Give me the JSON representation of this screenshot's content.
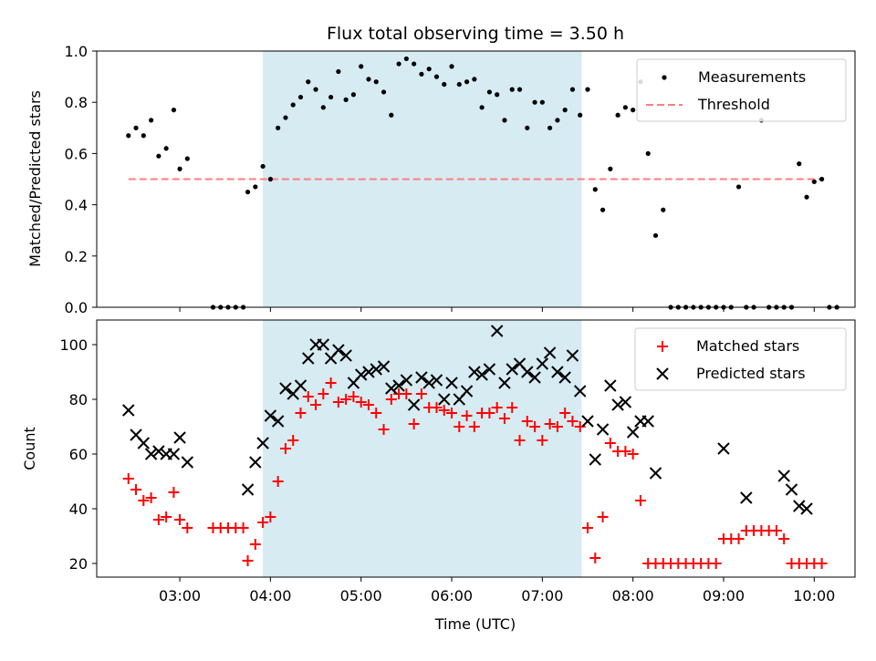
{
  "chart_data": [
    {
      "type": "scatter",
      "title": "Flux total observing time = 3.50 h",
      "xlabel": "",
      "ylabel": "Matched/Predicted stars",
      "ylim": [
        0,
        1.0
      ],
      "xlim": [
        "02:05",
        "10:27"
      ],
      "yticks": [
        "0.0",
        "0.2",
        "0.4",
        "0.6",
        "0.8",
        "1.0"
      ],
      "observing_window": {
        "start": "03:55",
        "end": "07:26"
      },
      "legend_position": "top-right",
      "grid": false,
      "series": [
        {
          "name": "Measurements",
          "marker": "dot",
          "color": "#000000",
          "points": [
            [
              "02:26",
              0.67
            ],
            [
              "02:31",
              0.7
            ],
            [
              "02:36",
              0.67
            ],
            [
              "02:41",
              0.73
            ],
            [
              "02:46",
              0.59
            ],
            [
              "02:51",
              0.62
            ],
            [
              "02:56",
              0.77
            ],
            [
              "03:00",
              0.54
            ],
            [
              "03:05",
              0.58
            ],
            [
              "03:22",
              0.0
            ],
            [
              "03:27",
              0.0
            ],
            [
              "03:32",
              0.0
            ],
            [
              "03:37",
              0.0
            ],
            [
              "03:42",
              0.0
            ],
            [
              "03:45",
              0.45
            ],
            [
              "03:50",
              0.47
            ],
            [
              "03:55",
              0.55
            ],
            [
              "04:00",
              0.5
            ],
            [
              "04:05",
              0.7
            ],
            [
              "04:10",
              0.74
            ],
            [
              "04:15",
              0.79
            ],
            [
              "04:20",
              0.82
            ],
            [
              "04:25",
              0.88
            ],
            [
              "04:30",
              0.85
            ],
            [
              "04:35",
              0.78
            ],
            [
              "04:40",
              0.82
            ],
            [
              "04:45",
              0.92
            ],
            [
              "04:50",
              0.81
            ],
            [
              "04:55",
              0.83
            ],
            [
              "05:00",
              0.94
            ],
            [
              "05:05",
              0.89
            ],
            [
              "05:10",
              0.88
            ],
            [
              "05:15",
              0.84
            ],
            [
              "05:20",
              0.75
            ],
            [
              "05:25",
              0.95
            ],
            [
              "05:30",
              0.97
            ],
            [
              "05:35",
              0.95
            ],
            [
              "05:40",
              0.91
            ],
            [
              "05:45",
              0.93
            ],
            [
              "05:50",
              0.9
            ],
            [
              "05:55",
              0.87
            ],
            [
              "06:00",
              0.94
            ],
            [
              "06:05",
              0.87
            ],
            [
              "06:10",
              0.88
            ],
            [
              "06:15",
              0.89
            ],
            [
              "06:20",
              0.78
            ],
            [
              "06:25",
              0.84
            ],
            [
              "06:30",
              0.83
            ],
            [
              "06:35",
              0.73
            ],
            [
              "06:40",
              0.85
            ],
            [
              "06:45",
              0.85
            ],
            [
              "06:50",
              0.7
            ],
            [
              "06:55",
              0.8
            ],
            [
              "07:00",
              0.8
            ],
            [
              "07:05",
              0.7
            ],
            [
              "07:10",
              0.73
            ],
            [
              "07:15",
              0.77
            ],
            [
              "07:20",
              0.85
            ],
            [
              "07:25",
              0.75
            ],
            [
              "07:30",
              0.85
            ],
            [
              "07:35",
              0.46
            ],
            [
              "07:40",
              0.38
            ],
            [
              "07:45",
              0.54
            ],
            [
              "07:50",
              0.75
            ],
            [
              "07:55",
              0.78
            ],
            [
              "08:00",
              0.77
            ],
            [
              "08:05",
              0.88
            ],
            [
              "08:10",
              0.6
            ],
            [
              "08:15",
              0.28
            ],
            [
              "08:20",
              0.38
            ],
            [
              "08:25",
              0.0
            ],
            [
              "08:30",
              0.0
            ],
            [
              "08:35",
              0.0
            ],
            [
              "08:40",
              0.0
            ],
            [
              "08:45",
              0.0
            ],
            [
              "08:50",
              0.0
            ],
            [
              "08:55",
              0.0
            ],
            [
              "09:00",
              0.0
            ],
            [
              "09:05",
              0.0
            ],
            [
              "09:10",
              0.47
            ],
            [
              "09:15",
              0.0
            ],
            [
              "09:20",
              0.0
            ],
            [
              "09:25",
              0.73
            ],
            [
              "09:30",
              0.0
            ],
            [
              "09:35",
              0.0
            ],
            [
              "09:40",
              0.0
            ],
            [
              "09:45",
              0.0
            ],
            [
              "09:50",
              0.56
            ],
            [
              "09:55",
              0.43
            ],
            [
              "10:00",
              0.49
            ],
            [
              "10:05",
              0.5
            ],
            [
              "10:10",
              0.0
            ],
            [
              "10:15",
              0.0
            ]
          ]
        },
        {
          "name": "Threshold",
          "style": "dashed-line",
          "color": "#ff7f7f",
          "points": [
            [
              "02:26",
              0.5
            ],
            [
              "10:05",
              0.5
            ]
          ]
        }
      ]
    },
    {
      "type": "scatter",
      "title": "",
      "xlabel": "Time (UTC)",
      "ylabel": "Count",
      "ylim": [
        15,
        109
      ],
      "xlim": [
        "02:05",
        "10:27"
      ],
      "yticks": [
        "20",
        "40",
        "60",
        "80",
        "100"
      ],
      "xticks": [
        "03:00",
        "04:00",
        "05:00",
        "06:00",
        "07:00",
        "08:00",
        "09:00",
        "10:00"
      ],
      "observing_window": {
        "start": "03:55",
        "end": "07:26"
      },
      "legend_position": "top-right",
      "grid": false,
      "series": [
        {
          "name": "Matched stars",
          "marker": "plus",
          "color": "#ff0000",
          "points": [
            [
              "02:26",
              51
            ],
            [
              "02:31",
              47
            ],
            [
              "02:36",
              43
            ],
            [
              "02:41",
              44
            ],
            [
              "02:46",
              36
            ],
            [
              "02:51",
              37
            ],
            [
              "02:56",
              46
            ],
            [
              "03:00",
              36
            ],
            [
              "03:05",
              33
            ],
            [
              "03:22",
              33
            ],
            [
              "03:27",
              33
            ],
            [
              "03:32",
              33
            ],
            [
              "03:37",
              33
            ],
            [
              "03:42",
              33
            ],
            [
              "03:45",
              21
            ],
            [
              "03:50",
              27
            ],
            [
              "03:55",
              35
            ],
            [
              "04:00",
              37
            ],
            [
              "04:05",
              50
            ],
            [
              "04:10",
              62
            ],
            [
              "04:15",
              65
            ],
            [
              "04:20",
              75
            ],
            [
              "04:25",
              81
            ],
            [
              "04:30",
              78
            ],
            [
              "04:35",
              82
            ],
            [
              "04:40",
              86
            ],
            [
              "04:45",
              79
            ],
            [
              "04:50",
              80
            ],
            [
              "04:55",
              81
            ],
            [
              "05:00",
              79
            ],
            [
              "05:05",
              78
            ],
            [
              "05:10",
              75
            ],
            [
              "05:15",
              69
            ],
            [
              "05:20",
              80
            ],
            [
              "05:25",
              82
            ],
            [
              "05:30",
              82
            ],
            [
              "05:35",
              71
            ],
            [
              "05:40",
              82
            ],
            [
              "05:45",
              77
            ],
            [
              "05:50",
              77
            ],
            [
              "05:55",
              76
            ],
            [
              "06:00",
              75
            ],
            [
              "06:05",
              70
            ],
            [
              "06:10",
              74
            ],
            [
              "06:15",
              70
            ],
            [
              "06:20",
              75
            ],
            [
              "06:25",
              75
            ],
            [
              "06:30",
              77
            ],
            [
              "06:35",
              73
            ],
            [
              "06:40",
              77
            ],
            [
              "06:45",
              65
            ],
            [
              "06:50",
              72
            ],
            [
              "06:55",
              70
            ],
            [
              "07:00",
              65
            ],
            [
              "07:05",
              71
            ],
            [
              "07:10",
              70
            ],
            [
              "07:15",
              75
            ],
            [
              "07:20",
              72
            ],
            [
              "07:25",
              70
            ],
            [
              "07:30",
              33
            ],
            [
              "07:35",
              22
            ],
            [
              "07:40",
              37
            ],
            [
              "07:45",
              64
            ],
            [
              "07:50",
              61
            ],
            [
              "07:55",
              61
            ],
            [
              "08:00",
              60
            ],
            [
              "08:05",
              43
            ],
            [
              "08:10",
              20
            ],
            [
              "08:15",
              20
            ],
            [
              "08:20",
              20
            ],
            [
              "08:25",
              20
            ],
            [
              "08:30",
              20
            ],
            [
              "08:35",
              20
            ],
            [
              "08:40",
              20
            ],
            [
              "08:45",
              20
            ],
            [
              "08:50",
              20
            ],
            [
              "08:55",
              20
            ],
            [
              "09:00",
              29
            ],
            [
              "09:05",
              29
            ],
            [
              "09:10",
              29
            ],
            [
              "09:15",
              32
            ],
            [
              "09:20",
              32
            ],
            [
              "09:25",
              32
            ],
            [
              "09:30",
              32
            ],
            [
              "09:35",
              32
            ],
            [
              "09:40",
              29
            ],
            [
              "09:45",
              20
            ],
            [
              "09:50",
              20
            ],
            [
              "09:55",
              20
            ],
            [
              "10:00",
              20
            ],
            [
              "10:05",
              20
            ]
          ]
        },
        {
          "name": "Predicted stars",
          "marker": "x",
          "color": "#000000",
          "points": [
            [
              "02:26",
              76
            ],
            [
              "02:31",
              67
            ],
            [
              "02:36",
              64
            ],
            [
              "02:41",
              60
            ],
            [
              "02:46",
              61
            ],
            [
              "02:51",
              60
            ],
            [
              "02:56",
              60
            ],
            [
              "03:00",
              66
            ],
            [
              "03:05",
              57
            ],
            [
              "03:45",
              47
            ],
            [
              "03:50",
              57
            ],
            [
              "03:55",
              64
            ],
            [
              "04:00",
              74
            ],
            [
              "04:05",
              72
            ],
            [
              "04:10",
              84
            ],
            [
              "04:15",
              82
            ],
            [
              "04:20",
              85
            ],
            [
              "04:25",
              95
            ],
            [
              "04:30",
              100
            ],
            [
              "04:35",
              100
            ],
            [
              "04:40",
              95
            ],
            [
              "04:45",
              98
            ],
            [
              "04:50",
              96
            ],
            [
              "04:55",
              86
            ],
            [
              "05:00",
              89
            ],
            [
              "05:05",
              90
            ],
            [
              "05:10",
              91
            ],
            [
              "05:15",
              92
            ],
            [
              "05:20",
              84
            ],
            [
              "05:25",
              85
            ],
            [
              "05:30",
              87
            ],
            [
              "05:35",
              78
            ],
            [
              "05:40",
              88
            ],
            [
              "05:45",
              86
            ],
            [
              "05:50",
              87
            ],
            [
              "05:55",
              80
            ],
            [
              "06:00",
              86
            ],
            [
              "06:05",
              80
            ],
            [
              "06:10",
              83
            ],
            [
              "06:15",
              90
            ],
            [
              "06:20",
              89
            ],
            [
              "06:25",
              91
            ],
            [
              "06:30",
              105
            ],
            [
              "06:35",
              86
            ],
            [
              "06:40",
              91
            ],
            [
              "06:45",
              93
            ],
            [
              "06:50",
              90
            ],
            [
              "06:55",
              88
            ],
            [
              "07:00",
              93
            ],
            [
              "07:05",
              97
            ],
            [
              "07:10",
              90
            ],
            [
              "07:15",
              88
            ],
            [
              "07:20",
              96
            ],
            [
              "07:25",
              83
            ],
            [
              "07:30",
              72
            ],
            [
              "07:35",
              58
            ],
            [
              "07:40",
              69
            ],
            [
              "07:45",
              85
            ],
            [
              "07:50",
              78
            ],
            [
              "07:55",
              79
            ],
            [
              "08:00",
              68
            ],
            [
              "08:05",
              72
            ],
            [
              "08:10",
              72
            ],
            [
              "08:15",
              53
            ],
            [
              "09:00",
              62
            ],
            [
              "09:15",
              44
            ],
            [
              "09:40",
              52
            ],
            [
              "09:45",
              47
            ],
            [
              "09:50",
              41
            ],
            [
              "09:55",
              40
            ]
          ]
        }
      ]
    }
  ],
  "colors": {
    "observing_window_fill": "#add8e6",
    "matched_marker": "#ff0000",
    "predicted_marker": "#000000",
    "measurement_marker": "#000000",
    "threshold_line": "#ff7f7f"
  }
}
